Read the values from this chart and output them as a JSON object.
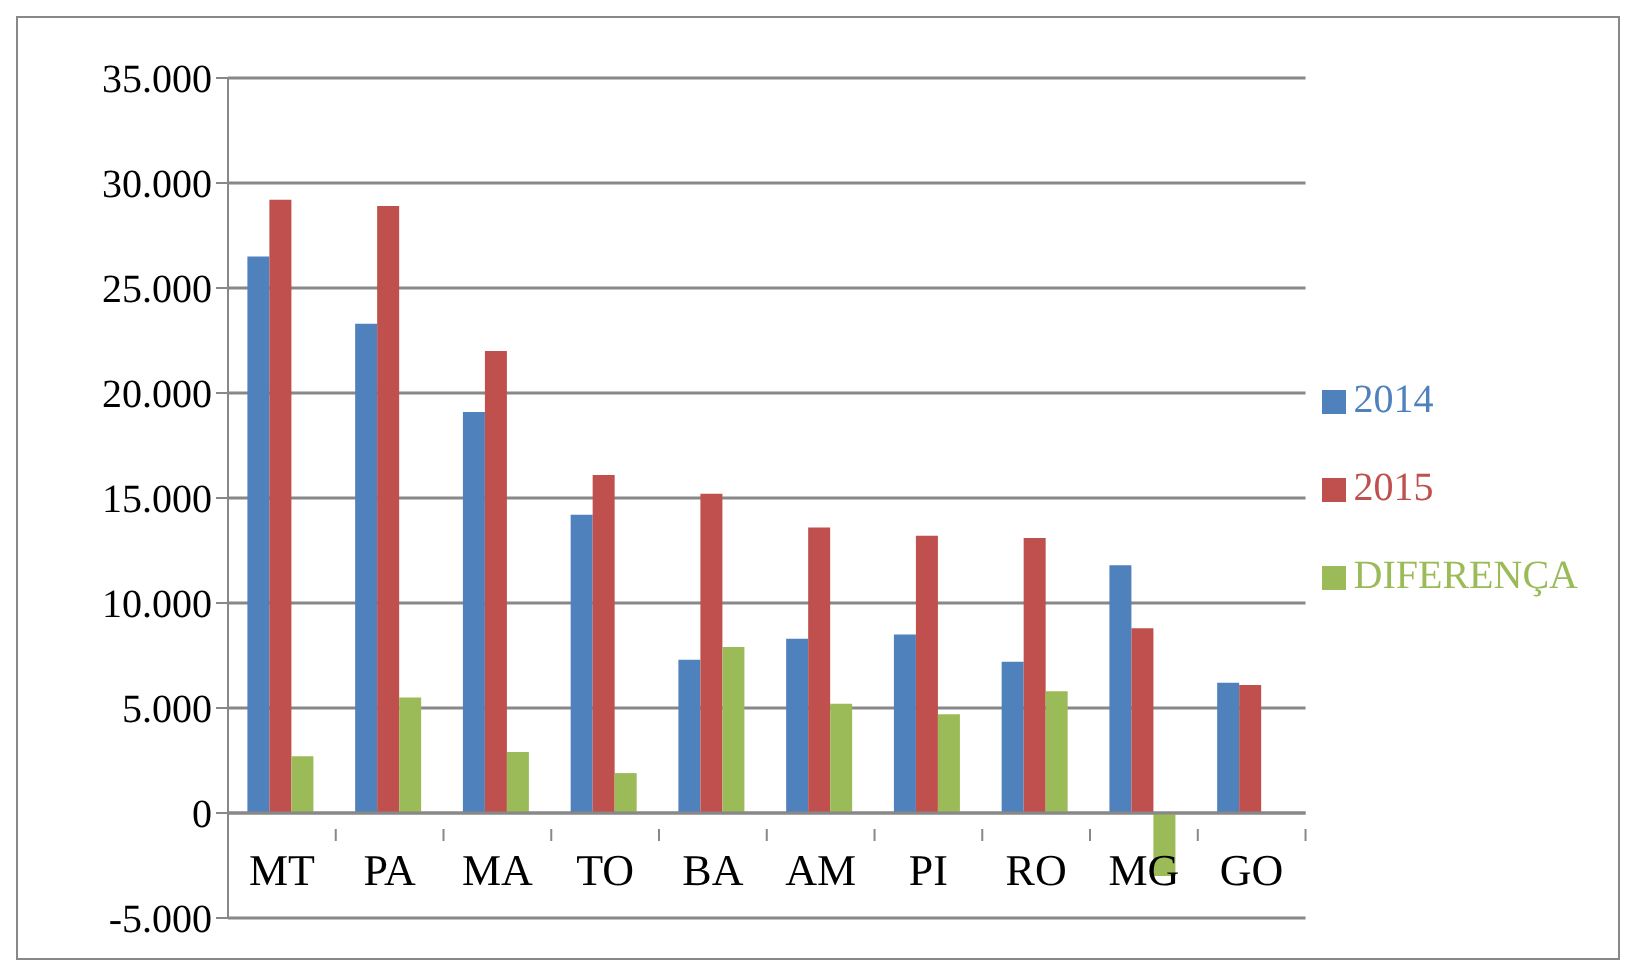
{
  "chart_data": {
    "type": "bar",
    "categories": [
      "MT",
      "PA",
      "MA",
      "TO",
      "BA",
      "AM",
      "PI",
      "RO",
      "MG",
      "GO"
    ],
    "series": [
      {
        "name": "2014",
        "color": "#4f81bd",
        "values": [
          26500,
          23300,
          19100,
          14200,
          7300,
          8300,
          8500,
          7200,
          11800,
          6200
        ]
      },
      {
        "name": "2015",
        "color": "#c0504d",
        "values": [
          29200,
          28900,
          22000,
          16100,
          15200,
          13600,
          13200,
          13100,
          8800,
          6100
        ]
      },
      {
        "name": "DIFERENÇA",
        "color": "#9bbb59",
        "values": [
          2700,
          5500,
          2900,
          1900,
          7900,
          5200,
          4700,
          5800,
          -3000,
          null
        ]
      }
    ],
    "ylim": [
      -5000,
      35000
    ],
    "yticks": [
      {
        "value": -5000,
        "label": "-5.000"
      },
      {
        "value": 0,
        "label": "0"
      },
      {
        "value": 5000,
        "label": "5.000"
      },
      {
        "value": 10000,
        "label": "10.000"
      },
      {
        "value": 15000,
        "label": "15.000"
      },
      {
        "value": 20000,
        "label": "20.000"
      },
      {
        "value": 25000,
        "label": "25.000"
      },
      {
        "value": 30000,
        "label": "30.000"
      },
      {
        "value": 35000,
        "label": "35.000"
      }
    ],
    "grid": "y",
    "legend": "right"
  }
}
